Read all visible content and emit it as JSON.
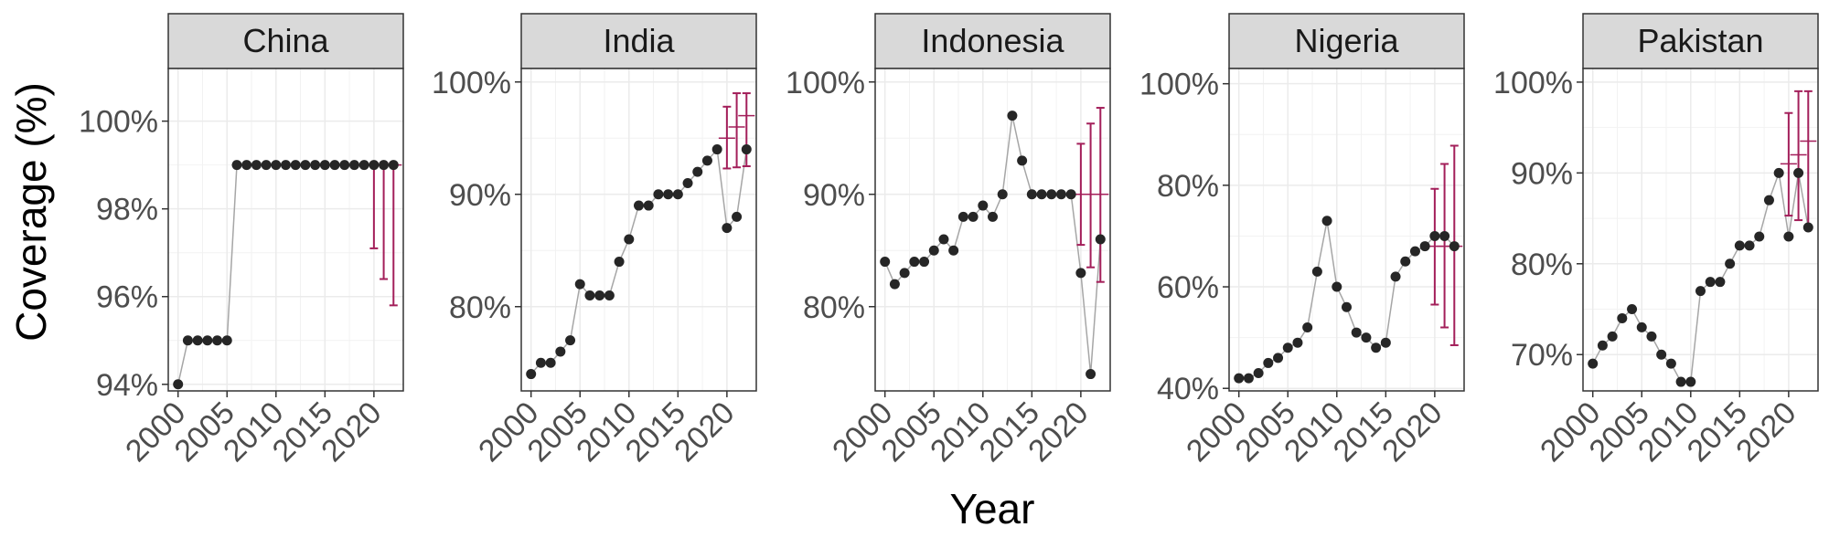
{
  "chart_data": {
    "type": "scatter",
    "xlabel": "Year",
    "ylabel": "Coverage (%)",
    "grid": true,
    "colors": {
      "points": "#262626",
      "line": "#a6a6a6",
      "error": "#a31f5a",
      "strip": "#d9d9d9",
      "grid": "#ebebeb"
    },
    "panels": [
      {
        "name": "China",
        "xlim": [
          1999,
          2023
        ],
        "ylim": [
          93.85,
          101.2
        ],
        "yticks": [
          94,
          96,
          98,
          100
        ],
        "ytick_labels": [
          "94%",
          "96%",
          "98%",
          "100%"
        ],
        "x": [
          2000,
          2001,
          2002,
          2003,
          2004,
          2005,
          2006,
          2007,
          2008,
          2009,
          2010,
          2011,
          2012,
          2013,
          2014,
          2015,
          2016,
          2017,
          2018,
          2019,
          2020,
          2021,
          2022
        ],
        "y": [
          94,
          95,
          95,
          95,
          95,
          95,
          99,
          99,
          99,
          99,
          99,
          99,
          99,
          99,
          99,
          99,
          99,
          99,
          99,
          99,
          99,
          99,
          99
        ],
        "error_bars": [
          {
            "x": 2020,
            "y": 99,
            "low": 97.1,
            "high": 99.05
          },
          {
            "x": 2021,
            "y": 99,
            "low": 96.4,
            "high": 99.05
          },
          {
            "x": 2022,
            "y": 99,
            "low": 95.8,
            "high": 99.05
          }
        ]
      },
      {
        "name": "India",
        "xlim": [
          1999,
          2023
        ],
        "ylim": [
          72.5,
          101.2
        ],
        "yticks": [
          80,
          90,
          100
        ],
        "ytick_labels": [
          "80%",
          "90%",
          "100%"
        ],
        "x": [
          2000,
          2001,
          2002,
          2003,
          2004,
          2005,
          2006,
          2007,
          2008,
          2009,
          2010,
          2011,
          2012,
          2013,
          2014,
          2015,
          2016,
          2017,
          2018,
          2019,
          2020,
          2021,
          2022
        ],
        "y": [
          74,
          75,
          75,
          76,
          77,
          82,
          81,
          81,
          81,
          84,
          86,
          89,
          89,
          90,
          90,
          90,
          91,
          92,
          93,
          94,
          87,
          88,
          94
        ],
        "error_bars": [
          {
            "x": 2020,
            "y": 95,
            "low": 92.3,
            "high": 97.8
          },
          {
            "x": 2021,
            "y": 96,
            "low": 92.4,
            "high": 99.0
          },
          {
            "x": 2022,
            "y": 97,
            "low": 92.5,
            "high": 99.0
          }
        ]
      },
      {
        "name": "Indonesia",
        "xlim": [
          1999,
          2023
        ],
        "ylim": [
          72.5,
          101.2
        ],
        "yticks": [
          80,
          90,
          100
        ],
        "ytick_labels": [
          "80%",
          "90%",
          "100%"
        ],
        "x": [
          2000,
          2001,
          2002,
          2003,
          2004,
          2005,
          2006,
          2007,
          2008,
          2009,
          2010,
          2011,
          2012,
          2013,
          2014,
          2015,
          2016,
          2017,
          2018,
          2019,
          2020,
          2021,
          2022
        ],
        "y": [
          84,
          82,
          83,
          84,
          84,
          85,
          86,
          85,
          88,
          88,
          89,
          88,
          90,
          97,
          93,
          90,
          90,
          90,
          90,
          90,
          83,
          74,
          86
        ],
        "error_bars": [
          {
            "x": 2020,
            "y": 90,
            "low": 85.5,
            "high": 94.5
          },
          {
            "x": 2021,
            "y": 90,
            "low": 83.5,
            "high": 96.3
          },
          {
            "x": 2022,
            "y": 90,
            "low": 82.2,
            "high": 97.7
          }
        ]
      },
      {
        "name": "Nigeria",
        "xlim": [
          1999,
          2023
        ],
        "ylim": [
          39.5,
          103
        ],
        "yticks": [
          40,
          60,
          80,
          100
        ],
        "ytick_labels": [
          "40%",
          "60%",
          "80%",
          "100%"
        ],
        "x": [
          2000,
          2001,
          2002,
          2003,
          2004,
          2005,
          2006,
          2007,
          2008,
          2009,
          2010,
          2011,
          2012,
          2013,
          2014,
          2015,
          2016,
          2017,
          2018,
          2019,
          2020,
          2021,
          2022
        ],
        "y": [
          42,
          42,
          43,
          45,
          46,
          48,
          49,
          52,
          63,
          73,
          60,
          56,
          51,
          50,
          48,
          49,
          62,
          65,
          67,
          68,
          70,
          70,
          68
        ],
        "error_bars": [
          {
            "x": 2020,
            "y": 68,
            "low": 56.5,
            "high": 79.3
          },
          {
            "x": 2021,
            "y": 68,
            "low": 52.0,
            "high": 84.2
          },
          {
            "x": 2022,
            "y": 68,
            "low": 48.5,
            "high": 87.8
          }
        ]
      },
      {
        "name": "Pakistan",
        "xlim": [
          1999,
          2023
        ],
        "ylim": [
          66,
          101.5
        ],
        "yticks": [
          70,
          80,
          90,
          100
        ],
        "ytick_labels": [
          "70%",
          "80%",
          "90%",
          "100%"
        ],
        "x": [
          2000,
          2001,
          2002,
          2003,
          2004,
          2005,
          2006,
          2007,
          2008,
          2009,
          2010,
          2011,
          2012,
          2013,
          2014,
          2015,
          2016,
          2017,
          2018,
          2019,
          2020,
          2021,
          2022
        ],
        "y": [
          69,
          71,
          72,
          74,
          75,
          73,
          72,
          70,
          69,
          67,
          67,
          77,
          78,
          78,
          80,
          82,
          82,
          83,
          87,
          90,
          83,
          90,
          84
        ],
        "error_bars": [
          {
            "x": 2020,
            "y": 91,
            "low": 85.3,
            "high": 96.6
          },
          {
            "x": 2021,
            "y": 92,
            "low": 84.8,
            "high": 99.0
          },
          {
            "x": 2022,
            "y": 93.5,
            "low": 84.0,
            "high": 99.0
          }
        ]
      }
    ],
    "xticks": [
      2000,
      2005,
      2010,
      2015,
      2020
    ],
    "xtick_labels": [
      "2000",
      "2005",
      "2010",
      "2015",
      "2020"
    ]
  }
}
